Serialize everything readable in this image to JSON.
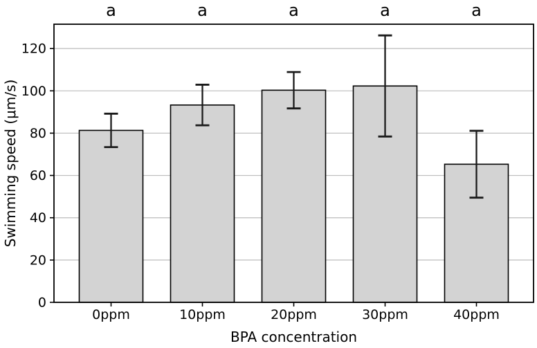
{
  "figure": {
    "background": "#ffffff"
  },
  "chart_data": {
    "type": "bar",
    "title": "",
    "xlabel": "BPA concentration",
    "ylabel": "Swimming speed (μm/s)",
    "categories": [
      "0ppm",
      "10ppm",
      "20ppm",
      "30ppm",
      "40ppm"
    ],
    "values": [
      81.3,
      93.3,
      100.3,
      102.3,
      65.3
    ],
    "errors": [
      7.9,
      9.6,
      8.6,
      23.9,
      15.8
    ],
    "significance_labels": [
      "a",
      "a",
      "a",
      "a",
      "a"
    ],
    "yticks": [
      0,
      20,
      40,
      60,
      80,
      100,
      120
    ],
    "ylim": [
      0,
      131.5
    ],
    "grid": "horizontal-only",
    "legend": "none",
    "colors": {
      "bar_fill": "#d3d3d3",
      "bar_edge": "#000000",
      "error_bar": "#1a1a1a",
      "grid_line": "#bcbcbc",
      "axis_spine": "#000000",
      "text": "#000000",
      "background": "#ffffff"
    }
  }
}
